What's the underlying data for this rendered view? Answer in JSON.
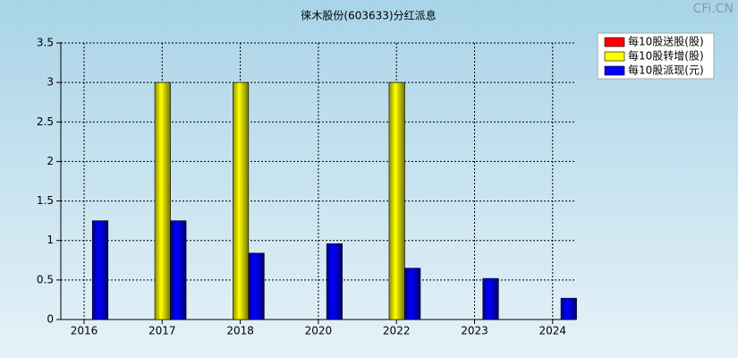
{
  "chart_data": {
    "type": "bar",
    "title": "徕木股份(603633)分红派息",
    "watermark": "CFi.CN",
    "categories": [
      "2016",
      "2017",
      "2018",
      "2020",
      "2022",
      "2023",
      "2024"
    ],
    "series": [
      {
        "name": "每10股送股(股)",
        "color": "#ff0000",
        "values": [
          null,
          null,
          null,
          null,
          null,
          null,
          null
        ]
      },
      {
        "name": "每10股转增(股)",
        "color": "#ffff00",
        "values": [
          null,
          3,
          3,
          null,
          3,
          null,
          null
        ]
      },
      {
        "name": "每10股派现(元)",
        "color": "#0000ff",
        "values": [
          1.25,
          1.25,
          0.84,
          0.96,
          0.65,
          0.52,
          0.27
        ]
      }
    ],
    "ylim": [
      0,
      3.5
    ],
    "yticks": [
      0,
      0.5,
      1,
      1.5,
      2,
      2.5,
      3,
      3.5
    ],
    "grid": true,
    "legend": "top-right"
  }
}
